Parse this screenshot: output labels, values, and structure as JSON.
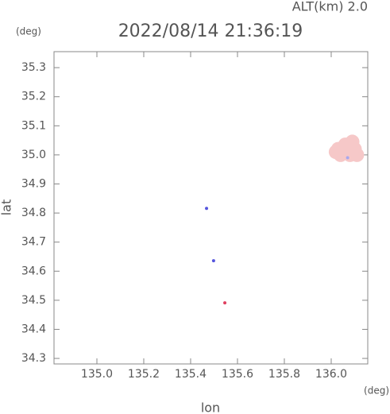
{
  "chart_data": {
    "type": "scatter",
    "title": "2022/08/14 21:36:19",
    "altitude_label": "ALT(km)  2.0",
    "y_unit": "(deg)",
    "x_unit": "(deg)",
    "xlabel": "lon",
    "ylabel": "lat",
    "xlim": [
      134.817,
      136.156
    ],
    "ylim": [
      34.281,
      35.355
    ],
    "xticks": [
      {
        "value": 135,
        "label": "135.0"
      },
      135.2,
      135.4,
      135.6,
      135.8,
      {
        "value": 136,
        "label": "136.0"
      }
    ],
    "yticks": [
      34.3,
      34.4,
      34.5,
      34.6,
      34.7,
      34.8,
      34.9,
      {
        "value": 35,
        "label": "35.0"
      },
      35.1,
      35.2,
      35.3
    ],
    "x": [
      136.03,
      136.06,
      136.09,
      136.04,
      136.08,
      136.11,
      136.06,
      136.02,
      136.1,
      136.07,
      135.468,
      135.498,
      135.546
    ],
    "y": [
      35.02,
      35.035,
      35.045,
      35.0,
      35.0,
      35.0,
      35.015,
      35.01,
      35.02,
      34.99,
      34.816,
      34.636,
      34.491
    ],
    "colors": [
      "#f6c8c8",
      "#f6c8c8",
      "#f6c8c8",
      "#f6c8c8",
      "#f6c8c8",
      "#f6c8c8",
      "#f6c8c8",
      "#f6c8c8",
      "#f6c8c8",
      "#a8a8ee",
      "#5555dd",
      "#5555dd",
      "#e04060"
    ]
  }
}
